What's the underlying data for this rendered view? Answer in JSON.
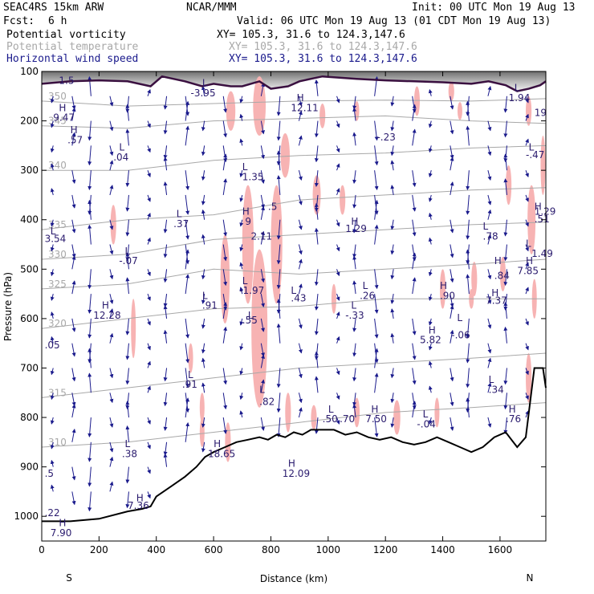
{
  "header": {
    "model": "SEAC4RS 15km ARW",
    "center": "NCAR/MMM",
    "init": "Init: 00 UTC Mon 19 Aug 13",
    "fcst_label": "Fcst:",
    "fcst_value": "6 h",
    "valid": "Valid: 06 UTC Mon 19 Aug 13 (01 CDT Mon 19 Aug 13)",
    "fields": [
      {
        "name": "Potential vorticity",
        "xy": "XY= 105.3, 31.6 to 124.3,147.6",
        "color": "#000000"
      },
      {
        "name": "Potential temperature",
        "xy": "XY= 105.3, 31.6 to 124.3,147.6",
        "color": "#a8a8a8"
      },
      {
        "name": "Horizontal wind speed",
        "xy": "XY= 105.3, 31.6 to 124.3,147.6",
        "color": "#1a1a8c"
      }
    ]
  },
  "chart_data": {
    "type": "cross-section",
    "xlabel": "Distance (km)",
    "ylabel": "Pressure (hPa)",
    "xlim": [
      0,
      1760
    ],
    "ylim": [
      1050,
      100
    ],
    "x_ticks": [
      0,
      200,
      400,
      600,
      800,
      1000,
      1200,
      1400,
      1600
    ],
    "y_ticks": [
      100,
      200,
      300,
      400,
      500,
      600,
      700,
      800,
      900,
      1000
    ],
    "endpoints": {
      "left": "S",
      "right": "N"
    },
    "colors": {
      "pv_fill": "#f7b3b3",
      "theta": "#a8a8a8",
      "wind": "#1a1a8c",
      "terrain": "#000000",
      "pv_contour": "#3a1040",
      "annot": "#2a1b6e"
    },
    "terrain": [
      [
        0,
        1010
      ],
      [
        100,
        1010
      ],
      [
        200,
        1005
      ],
      [
        300,
        990
      ],
      [
        350,
        985
      ],
      [
        380,
        980
      ],
      [
        400,
        960
      ],
      [
        450,
        940
      ],
      [
        500,
        920
      ],
      [
        540,
        900
      ],
      [
        570,
        880
      ],
      [
        600,
        870
      ],
      [
        640,
        860
      ],
      [
        680,
        850
      ],
      [
        720,
        845
      ],
      [
        760,
        840
      ],
      [
        790,
        845
      ],
      [
        820,
        835
      ],
      [
        850,
        840
      ],
      [
        880,
        830
      ],
      [
        910,
        835
      ],
      [
        940,
        825
      ],
      [
        980,
        825
      ],
      [
        1020,
        825
      ],
      [
        1060,
        835
      ],
      [
        1100,
        830
      ],
      [
        1140,
        840
      ],
      [
        1180,
        845
      ],
      [
        1220,
        840
      ],
      [
        1260,
        850
      ],
      [
        1300,
        855
      ],
      [
        1340,
        850
      ],
      [
        1380,
        840
      ],
      [
        1420,
        850
      ],
      [
        1460,
        860
      ],
      [
        1500,
        870
      ],
      [
        1540,
        860
      ],
      [
        1580,
        840
      ],
      [
        1620,
        830
      ],
      [
        1660,
        860
      ],
      [
        1690,
        840
      ],
      [
        1720,
        700
      ],
      [
        1750,
        700
      ],
      [
        1760,
        740
      ]
    ],
    "tropopause": [
      [
        0,
        125
      ],
      [
        100,
        120
      ],
      [
        200,
        118
      ],
      [
        300,
        120
      ],
      [
        380,
        130
      ],
      [
        420,
        110
      ],
      [
        500,
        120
      ],
      [
        560,
        130
      ],
      [
        600,
        125
      ],
      [
        660,
        130
      ],
      [
        700,
        130
      ],
      [
        760,
        120
      ],
      [
        800,
        135
      ],
      [
        860,
        130
      ],
      [
        900,
        120
      ],
      [
        940,
        115
      ],
      [
        980,
        110
      ],
      [
        1100,
        115
      ],
      [
        1200,
        118
      ],
      [
        1300,
        120
      ],
      [
        1400,
        122
      ],
      [
        1500,
        125
      ],
      [
        1560,
        120
      ],
      [
        1620,
        128
      ],
      [
        1660,
        140
      ],
      [
        1700,
        135
      ],
      [
        1740,
        128
      ],
      [
        1760,
        120
      ]
    ],
    "pv_blobs": [
      [
        660,
        180,
        16,
        40
      ],
      [
        760,
        170,
        22,
        60
      ],
      [
        850,
        270,
        16,
        45
      ],
      [
        980,
        190,
        10,
        25
      ],
      [
        960,
        350,
        14,
        40
      ],
      [
        1100,
        180,
        8,
        20
      ],
      [
        1050,
        360,
        10,
        30
      ],
      [
        1310,
        160,
        10,
        30
      ],
      [
        1430,
        140,
        10,
        20
      ],
      [
        1460,
        180,
        8,
        18
      ],
      [
        1700,
        180,
        10,
        30
      ],
      [
        1710,
        400,
        14,
        70
      ],
      [
        1750,
        290,
        8,
        60
      ],
      [
        1510,
        520,
        10,
        35
      ],
      [
        1400,
        540,
        10,
        40
      ],
      [
        1610,
        510,
        10,
        35
      ],
      [
        1720,
        560,
        8,
        40
      ],
      [
        1700,
        720,
        10,
        50
      ],
      [
        1380,
        790,
        8,
        30
      ],
      [
        1240,
        800,
        12,
        35
      ],
      [
        1100,
        790,
        10,
        30
      ],
      [
        950,
        800,
        10,
        25
      ],
      [
        860,
        790,
        10,
        40
      ],
      [
        520,
        680,
        8,
        30
      ],
      [
        650,
        850,
        10,
        40
      ],
      [
        560,
        830,
        8,
        30
      ],
      [
        320,
        620,
        8,
        60
      ],
      [
        250,
        410,
        10,
        40
      ],
      [
        820,
        450,
        20,
        120
      ],
      [
        720,
        450,
        20,
        120
      ],
      [
        760,
        620,
        28,
        160
      ],
      [
        640,
        520,
        16,
        90
      ],
      [
        560,
        780,
        8,
        30
      ],
      [
        1630,
        330,
        10,
        40
      ],
      [
        1500,
        560,
        8,
        20
      ],
      [
        1020,
        560,
        8,
        30
      ]
    ],
    "theta_contours": [
      {
        "label": "350",
        "pts": [
          [
            0,
            160
          ],
          [
            300,
            170
          ],
          [
            600,
            165
          ],
          [
            900,
            160
          ],
          [
            1200,
            158
          ],
          [
            1500,
            160
          ],
          [
            1760,
            155
          ]
        ]
      },
      {
        "label": "345",
        "pts": [
          [
            0,
            210
          ],
          [
            300,
            215
          ],
          [
            600,
            200
          ],
          [
            900,
            195
          ],
          [
            1200,
            190
          ],
          [
            1500,
            200
          ],
          [
            1760,
            205
          ]
        ]
      },
      {
        "label": "340",
        "pts": [
          [
            0,
            300
          ],
          [
            300,
            300
          ],
          [
            600,
            280
          ],
          [
            900,
            270
          ],
          [
            1200,
            265
          ],
          [
            1500,
            255
          ],
          [
            1760,
            250
          ]
        ]
      },
      {
        "label": "335",
        "pts": [
          [
            0,
            420
          ],
          [
            300,
            400
          ],
          [
            600,
            390
          ],
          [
            900,
            360
          ],
          [
            1200,
            350
          ],
          [
            1500,
            340
          ],
          [
            1760,
            335
          ]
        ]
      },
      {
        "label": "330",
        "pts": [
          [
            0,
            480
          ],
          [
            300,
            470
          ],
          [
            600,
            440
          ],
          [
            900,
            430
          ],
          [
            1200,
            420
          ],
          [
            1500,
            410
          ],
          [
            1760,
            405
          ]
        ]
      },
      {
        "label": "325",
        "pts": [
          [
            0,
            540
          ],
          [
            300,
            530
          ],
          [
            600,
            500
          ],
          [
            900,
            510
          ],
          [
            1200,
            500
          ],
          [
            1500,
            490
          ],
          [
            1760,
            480
          ]
        ]
      },
      {
        "label": "320",
        "pts": [
          [
            0,
            620
          ],
          [
            300,
            600
          ],
          [
            600,
            580
          ],
          [
            900,
            575
          ],
          [
            1200,
            560
          ],
          [
            1500,
            560
          ],
          [
            1760,
            560
          ]
        ]
      },
      {
        "label": "315",
        "pts": [
          [
            0,
            760
          ],
          [
            300,
            740
          ],
          [
            600,
            720
          ],
          [
            900,
            700
          ],
          [
            1200,
            690
          ],
          [
            1500,
            680
          ],
          [
            1760,
            670
          ]
        ]
      },
      {
        "label": "310",
        "pts": [
          [
            0,
            860
          ],
          [
            300,
            850
          ],
          [
            600,
            830
          ],
          [
            900,
            810
          ],
          [
            1200,
            790
          ],
          [
            1500,
            780
          ],
          [
            1760,
            770
          ]
        ]
      }
    ],
    "annotations": [
      {
        "t": "1.5",
        "x": 60,
        "y": 125
      },
      {
        "t": "H",
        "x": 60,
        "y": 180
      },
      {
        "t": "9.47",
        "x": 40,
        "y": 200
      },
      {
        "t": "H",
        "x": 100,
        "y": 225
      },
      {
        "t": ".57",
        "x": 90,
        "y": 245
      },
      {
        "t": "L",
        "x": 270,
        "y": 260
      },
      {
        "t": ".04",
        "x": 250,
        "y": 280
      },
      {
        "t": "L",
        "x": 470,
        "y": 395
      },
      {
        "t": ".37",
        "x": 460,
        "y": 415
      },
      {
        "t": "L",
        "x": 30,
        "y": 430
      },
      {
        "t": "3.54",
        "x": 10,
        "y": 445
      },
      {
        "t": "L",
        "x": 290,
        "y": 470
      },
      {
        "t": "-.07",
        "x": 270,
        "y": 490
      },
      {
        "t": "H",
        "x": 210,
        "y": 580
      },
      {
        "t": "12.28",
        "x": 180,
        "y": 600
      },
      {
        "t": ".05",
        "x": 10,
        "y": 660
      },
      {
        "t": "L",
        "x": 510,
        "y": 720
      },
      {
        "t": ".91",
        "x": 490,
        "y": 740
      },
      {
        "t": "L",
        "x": 290,
        "y": 860
      },
      {
        "t": ".38",
        "x": 280,
        "y": 880
      },
      {
        "t": "H",
        "x": 330,
        "y": 970
      },
      {
        "t": "7.36",
        "x": 300,
        "y": 985
      },
      {
        "t": "H",
        "x": 60,
        "y": 1020
      },
      {
        "t": "7.90",
        "x": 30,
        "y": 1040
      },
      {
        "t": "L",
        "x": 560,
        "y": 130
      },
      {
        "t": "-3.95",
        "x": 520,
        "y": 150
      },
      {
        "t": "H",
        "x": 890,
        "y": 160
      },
      {
        "t": "12.11",
        "x": 870,
        "y": 180
      },
      {
        "t": "-.23",
        "x": 1170,
        "y": 240
      },
      {
        "t": "L",
        "x": 700,
        "y": 300
      },
      {
        "t": "1.35",
        "x": 700,
        "y": 320
      },
      {
        "t": "H",
        "x": 700,
        "y": 390
      },
      {
        "t": "9",
        "x": 710,
        "y": 410
      },
      {
        "t": ".5",
        "x": 790,
        "y": 380
      },
      {
        "t": "2.11",
        "x": 730,
        "y": 440
      },
      {
        "t": "H",
        "x": 1080,
        "y": 410
      },
      {
        "t": "1.29",
        "x": 1060,
        "y": 425
      },
      {
        "t": "L",
        "x": 1540,
        "y": 420
      },
      {
        "t": ".78",
        "x": 1540,
        "y": 440
      },
      {
        "t": "H",
        "x": 1580,
        "y": 490
      },
      {
        "t": ".84",
        "x": 1580,
        "y": 520
      },
      {
        "t": "H",
        "x": 1570,
        "y": 555
      },
      {
        "t": "7.37",
        "x": 1550,
        "y": 570
      },
      {
        "t": "L",
        "x": 700,
        "y": 530
      },
      {
        "t": "-1.97",
        "x": 690,
        "y": 550
      },
      {
        "t": "L",
        "x": 870,
        "y": 550
      },
      {
        "t": ".43",
        "x": 870,
        "y": 565
      },
      {
        "t": "H",
        "x": 1390,
        "y": 540
      },
      {
        "t": ".90",
        "x": 1390,
        "y": 560
      },
      {
        "t": "L",
        "x": 1120,
        "y": 540
      },
      {
        "t": ".26",
        "x": 1110,
        "y": 560
      },
      {
        "t": "L",
        "x": 1080,
        "y": 580
      },
      {
        "t": "-.33",
        "x": 1060,
        "y": 600
      },
      {
        "t": "L",
        "x": 560,
        "y": 560
      },
      {
        "t": ".91",
        "x": 560,
        "y": 580
      },
      {
        "t": "L",
        "x": 720,
        "y": 600
      },
      {
        "t": ".55",
        "x": 700,
        "y": 610
      },
      {
        "t": "H",
        "x": 1350,
        "y": 630
      },
      {
        "t": "5.82",
        "x": 1320,
        "y": 650
      },
      {
        "t": "L",
        "x": 1450,
        "y": 605
      },
      {
        "t": "-.06",
        "x": 1430,
        "y": 640
      },
      {
        "t": "L",
        "x": 1700,
        "y": 260
      },
      {
        "t": "-.47",
        "x": 1690,
        "y": 275
      },
      {
        "t": "H",
        "x": 1720,
        "y": 380
      },
      {
        "t": "1.29",
        "x": 1720,
        "y": 390
      },
      {
        "t": ".51",
        "x": 1720,
        "y": 405
      },
      {
        "t": "L",
        "x": 1690,
        "y": 455
      },
      {
        "t": "1.49",
        "x": 1710,
        "y": 475
      },
      {
        "t": "H",
        "x": 1690,
        "y": 490
      },
      {
        "t": "7.85",
        "x": 1660,
        "y": 510
      },
      {
        "t": "L",
        "x": 1650,
        "y": 140
      },
      {
        "t": "1.94",
        "x": 1630,
        "y": 160
      },
      {
        "t": "19",
        "x": 1720,
        "y": 190
      },
      {
        "t": "L",
        "x": 1560,
        "y": 730
      },
      {
        "t": ".34",
        "x": 1560,
        "y": 750
      },
      {
        "t": "L",
        "x": 760,
        "y": 750
      },
      {
        "t": ".82",
        "x": 760,
        "y": 775
      },
      {
        "t": "L",
        "x": 1000,
        "y": 790
      },
      {
        "t": ".50",
        "x": 980,
        "y": 810
      },
      {
        "t": ".70",
        "x": 1040,
        "y": 810
      },
      {
        "t": "H",
        "x": 1150,
        "y": 790
      },
      {
        "t": "7.50",
        "x": 1130,
        "y": 810
      },
      {
        "t": "L",
        "x": 1330,
        "y": 800
      },
      {
        "t": "-.04",
        "x": 1310,
        "y": 820
      },
      {
        "t": "H",
        "x": 1630,
        "y": 790
      },
      {
        "t": ".76",
        "x": 1620,
        "y": 810
      },
      {
        "t": "H",
        "x": 600,
        "y": 860
      },
      {
        "t": "18.65",
        "x": 580,
        "y": 880
      },
      {
        "t": "12.09",
        "x": 840,
        "y": 920
      },
      {
        "t": ".5",
        "x": 10,
        "y": 920
      },
      {
        "t": ".22",
        "x": 10,
        "y": 1000
      },
      {
        "t": "H",
        "x": 860,
        "y": 900
      }
    ]
  }
}
